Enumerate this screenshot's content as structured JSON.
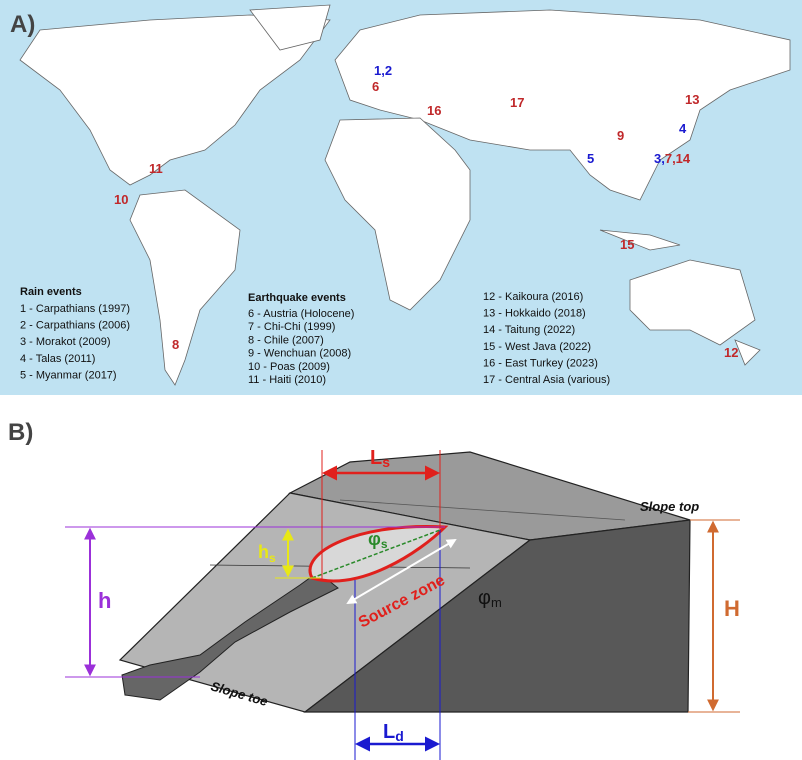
{
  "panel_a": {
    "label": "A)",
    "markers": [
      "1,2",
      "6",
      "16",
      "17",
      "13",
      "4",
      "9",
      "5",
      "3,",
      "7,14",
      "11",
      "10",
      "15",
      "8",
      "12"
    ],
    "legend": {
      "rain": {
        "title": "Rain events",
        "items": [
          "1 - Carpathians (1997)",
          "2 - Carpathians (2006)",
          "3 - Morakot (2009)",
          "4 - Talas (2011)",
          "5 - Myanmar (2017)"
        ]
      },
      "earthquake": {
        "title": "Earthquake events",
        "items": [
          "6 - Austria (Holocene)",
          "7 - Chi-Chi (1999)",
          "8 - Chile (2007)",
          "9 - Wenchuan (2008)",
          "10 - Poas (2009)",
          "11 - Haiti (2010)"
        ]
      },
      "earthquake_more": {
        "items": [
          "12 - Kaikoura (2016)",
          "13 - Hokkaido (2018)",
          "14 - Taitung (2022)",
          "15 - West Java (2022)",
          "16 - East Turkey (2023)",
          "17 - Central Asia (various)"
        ]
      }
    }
  },
  "panel_b": {
    "label": "B)",
    "ls": {
      "main": "L",
      "sub": "s"
    },
    "ld": {
      "main": "L",
      "sub": "d"
    },
    "hs": {
      "main": "h",
      "sub": "s"
    },
    "phis": {
      "main": "φ",
      "sub": "s"
    },
    "phim": {
      "main": "φ",
      "sub": "m"
    },
    "h": "h",
    "H": "H",
    "source_zone": "Source zone",
    "slope_top": "Slope top",
    "slope_toe": "Slope toe"
  }
}
